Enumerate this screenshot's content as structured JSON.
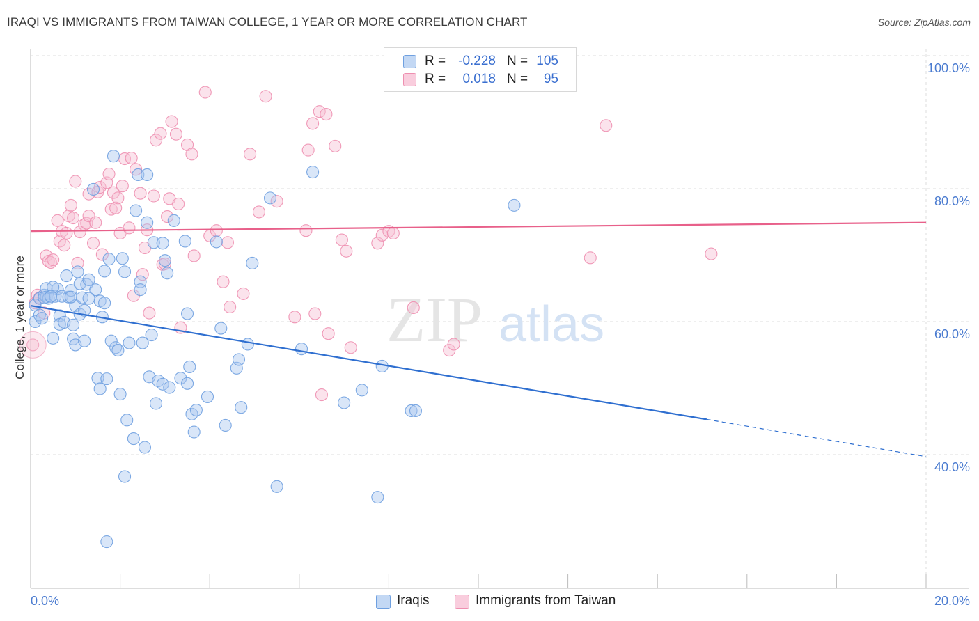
{
  "title": "IRAQI VS IMMIGRANTS FROM TAIWAN COLLEGE, 1 YEAR OR MORE CORRELATION CHART",
  "source": "Source: ZipAtlas.com",
  "watermark": {
    "zip": "ZIP",
    "atlas": "atlas"
  },
  "colors": {
    "iraqis": "#6fa0e0",
    "iraqis_fill": "#aac8ef",
    "iraqis_line": "#2f6fd0",
    "taiwan": "#ee8fb0",
    "taiwan_fill": "#f6c2d4",
    "taiwan_line": "#e8608a",
    "grid": "#dddddd",
    "tick_text": "#4a7bd0"
  },
  "legend_stats": [
    {
      "series": "Iraqis",
      "r_label": "R =",
      "r_value": "-0.228",
      "n_label": "N =",
      "n_value": "105"
    },
    {
      "series": "Immigrants from Taiwan",
      "r_label": "R =",
      "r_value": "0.018",
      "n_label": "N =",
      "n_value": "95"
    }
  ],
  "chart_data": {
    "type": "scatter",
    "title": "IRAQI VS IMMIGRANTS FROM TAIWAN COLLEGE, 1 YEAR OR MORE CORRELATION CHART",
    "xlabel": "",
    "ylabel": "College, 1 year or more",
    "xlim": [
      0,
      20
    ],
    "ylim": [
      20,
      104
    ],
    "x_tick_labels": [
      "0.0%",
      "20.0%"
    ],
    "y_ticks": [
      40,
      60,
      80,
      100
    ],
    "y_tick_labels": [
      "40.0%",
      "60.0%",
      "80.0%",
      "100.0%"
    ],
    "grid": true,
    "legend_position": "bottom-center",
    "series": [
      {
        "name": "Iraqis",
        "trend": {
          "x0": 0,
          "y0": 62.4,
          "x1": 15.1,
          "y1": 45.3,
          "dashed_to_x": 20,
          "dashed_to_y": 39.7
        },
        "points": [
          [
            0.1,
            62.5
          ],
          [
            0.1,
            60
          ],
          [
            0.2,
            61
          ],
          [
            0.2,
            63.5
          ],
          [
            0.25,
            60.5
          ],
          [
            0.3,
            64
          ],
          [
            0.35,
            65
          ],
          [
            0.35,
            63.7
          ],
          [
            0.4,
            63.5
          ],
          [
            0.5,
            57.5
          ],
          [
            0.55,
            63.8
          ],
          [
            0.6,
            64.9
          ],
          [
            0.65,
            60.9
          ],
          [
            0.65,
            59.6
          ],
          [
            0.7,
            63.8
          ],
          [
            0.75,
            59.9
          ],
          [
            0.8,
            66.9
          ],
          [
            0.85,
            63.7
          ],
          [
            0.9,
            64.7
          ],
          [
            0.95,
            57.4
          ],
          [
            1.0,
            56.5
          ],
          [
            1.0,
            62.4
          ],
          [
            1.05,
            67.5
          ],
          [
            1.1,
            61.1
          ],
          [
            1.1,
            65.7
          ],
          [
            1.15,
            63.6
          ],
          [
            1.2,
            57.1
          ],
          [
            1.2,
            61.7
          ],
          [
            1.25,
            65.6
          ],
          [
            1.3,
            66.3
          ],
          [
            1.4,
            79.9
          ],
          [
            1.45,
            64.8
          ],
          [
            1.5,
            51.5
          ],
          [
            1.55,
            49.9
          ],
          [
            1.55,
            63.1
          ],
          [
            1.6,
            60.7
          ],
          [
            1.65,
            67.6
          ],
          [
            1.65,
            62.8
          ],
          [
            1.7,
            51.4
          ],
          [
            1.75,
            69.4
          ],
          [
            1.8,
            57.1
          ],
          [
            1.85,
            84.9
          ],
          [
            1.9,
            56.1
          ],
          [
            1.95,
            55.7
          ],
          [
            2.0,
            49.1
          ],
          [
            2.05,
            69.5
          ],
          [
            2.1,
            36.7
          ],
          [
            2.1,
            67.5
          ],
          [
            2.15,
            45.2
          ],
          [
            2.2,
            56.8
          ],
          [
            2.3,
            42.4
          ],
          [
            2.35,
            76.7
          ],
          [
            2.4,
            82.1
          ],
          [
            2.45,
            66
          ],
          [
            2.45,
            64.8
          ],
          [
            2.5,
            56.8
          ],
          [
            2.55,
            41.1
          ],
          [
            2.6,
            74.9
          ],
          [
            2.6,
            82.1
          ],
          [
            2.65,
            51.7
          ],
          [
            2.7,
            58
          ],
          [
            2.75,
            71.9
          ],
          [
            2.8,
            47.7
          ],
          [
            2.85,
            51.1
          ],
          [
            2.95,
            50.6
          ],
          [
            3.05,
            67.3
          ],
          [
            3.1,
            50.1
          ],
          [
            3.2,
            75.2
          ],
          [
            3.35,
            51.5
          ],
          [
            3.45,
            72.1
          ],
          [
            3.5,
            50.7
          ],
          [
            3.5,
            61.2
          ],
          [
            3.55,
            53.2
          ],
          [
            3.6,
            46.1
          ],
          [
            3.65,
            43.4
          ],
          [
            3.7,
            46.7
          ],
          [
            3.95,
            48.7
          ],
          [
            4.15,
            72
          ],
          [
            4.25,
            59
          ],
          [
            4.35,
            44.4
          ],
          [
            4.6,
            53
          ],
          [
            4.65,
            54.3
          ],
          [
            4.7,
            47.1
          ],
          [
            4.85,
            56.6
          ],
          [
            4.95,
            68.8
          ],
          [
            5.35,
            78.6
          ],
          [
            5.5,
            35.2
          ],
          [
            6.05,
            55.9
          ],
          [
            6.3,
            82.5
          ],
          [
            7.0,
            47.8
          ],
          [
            7.4,
            49.7
          ],
          [
            7.75,
            33.6
          ],
          [
            7.85,
            53.3
          ],
          [
            8.5,
            46.6
          ],
          [
            8.6,
            46.6
          ],
          [
            10.8,
            77.5
          ],
          [
            1.7,
            26.9
          ],
          [
            0.95,
            59.5
          ],
          [
            0.3,
            63.6
          ],
          [
            0.9,
            63.7
          ],
          [
            1.3,
            63.5
          ],
          [
            0.5,
            65.2
          ],
          [
            2.95,
            71.8
          ],
          [
            3.0,
            69.2
          ],
          [
            0.45,
            63.8
          ]
        ]
      },
      {
        "name": "Immigrants from Taiwan",
        "trend": {
          "x0": 0,
          "y0": 73.6,
          "x1": 20,
          "y1": 74.9
        },
        "points": [
          [
            0.05,
            56.5
          ],
          [
            0.1,
            62.8
          ],
          [
            0.15,
            64
          ],
          [
            0.2,
            63.6
          ],
          [
            0.3,
            61.3
          ],
          [
            0.35,
            69.9
          ],
          [
            0.4,
            69.1
          ],
          [
            0.45,
            68.9
          ],
          [
            0.5,
            69.3
          ],
          [
            0.6,
            75.2
          ],
          [
            0.65,
            72.1
          ],
          [
            0.7,
            73.6
          ],
          [
            0.75,
            71.5
          ],
          [
            0.8,
            73.3
          ],
          [
            0.85,
            75.9
          ],
          [
            0.9,
            77.5
          ],
          [
            0.95,
            75.6
          ],
          [
            1.0,
            81.1
          ],
          [
            1.05,
            68.8
          ],
          [
            1.1,
            73.5
          ],
          [
            1.2,
            74.6
          ],
          [
            1.25,
            74.8
          ],
          [
            1.3,
            75.9
          ],
          [
            1.3,
            79.2
          ],
          [
            1.4,
            71.8
          ],
          [
            1.45,
            74.9
          ],
          [
            1.5,
            79.5
          ],
          [
            1.55,
            80.2
          ],
          [
            1.6,
            70.1
          ],
          [
            1.7,
            80.9
          ],
          [
            1.75,
            82.2
          ],
          [
            1.8,
            76.9
          ],
          [
            1.85,
            79.4
          ],
          [
            1.9,
            77.1
          ],
          [
            1.95,
            78.6
          ],
          [
            2.0,
            73.3
          ],
          [
            2.05,
            80.4
          ],
          [
            2.1,
            84.5
          ],
          [
            2.2,
            74.1
          ],
          [
            2.25,
            84.6
          ],
          [
            2.3,
            63.9
          ],
          [
            2.35,
            82.9
          ],
          [
            2.45,
            79.3
          ],
          [
            2.5,
            67.1
          ],
          [
            2.55,
            71.1
          ],
          [
            2.6,
            73.8
          ],
          [
            2.65,
            61.3
          ],
          [
            2.75,
            78.9
          ],
          [
            2.8,
            87.3
          ],
          [
            2.9,
            88.3
          ],
          [
            2.95,
            68.6
          ],
          [
            3.0,
            68.7
          ],
          [
            3.05,
            75.8
          ],
          [
            3.1,
            78.5
          ],
          [
            3.15,
            90.1
          ],
          [
            3.25,
            88.2
          ],
          [
            3.3,
            77.7
          ],
          [
            3.35,
            59.1
          ],
          [
            3.5,
            86.6
          ],
          [
            3.6,
            85.2
          ],
          [
            3.65,
            69.9
          ],
          [
            3.9,
            94.5
          ],
          [
            4.0,
            72.9
          ],
          [
            4.15,
            73.7
          ],
          [
            4.3,
            66
          ],
          [
            4.4,
            71.9
          ],
          [
            4.45,
            62.2
          ],
          [
            4.75,
            64.2
          ],
          [
            4.9,
            85.2
          ],
          [
            5.1,
            76.5
          ],
          [
            5.25,
            93.9
          ],
          [
            5.5,
            78.1
          ],
          [
            5.9,
            60.7
          ],
          [
            6.15,
            73.7
          ],
          [
            6.2,
            85.8
          ],
          [
            6.3,
            89.8
          ],
          [
            6.35,
            61.2
          ],
          [
            6.45,
            91.6
          ],
          [
            6.5,
            49
          ],
          [
            6.6,
            91.2
          ],
          [
            6.65,
            58.2
          ],
          [
            6.8,
            86.4
          ],
          [
            6.95,
            72.3
          ],
          [
            7.05,
            70.6
          ],
          [
            7.15,
            56.1
          ],
          [
            7.75,
            71.8
          ],
          [
            7.85,
            73
          ],
          [
            8.0,
            73.6
          ],
          [
            8.1,
            73.3
          ],
          [
            8.55,
            62.1
          ],
          [
            9.35,
            55.7
          ],
          [
            9.45,
            56.6
          ],
          [
            12.5,
            69.6
          ],
          [
            12.85,
            89.5
          ],
          [
            15.2,
            70.2
          ]
        ]
      }
    ]
  },
  "legend": {
    "items": [
      {
        "label": "Iraqis"
      },
      {
        "label": "Immigrants from Taiwan"
      }
    ]
  }
}
